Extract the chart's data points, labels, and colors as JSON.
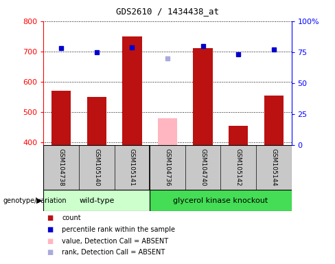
{
  "title": "GDS2610 / 1434438_at",
  "samples": [
    "GSM104738",
    "GSM105140",
    "GSM105141",
    "GSM104736",
    "GSM104740",
    "GSM105142",
    "GSM105144"
  ],
  "count_values": [
    570,
    550,
    750,
    null,
    710,
    455,
    553
  ],
  "count_absent": [
    null,
    null,
    null,
    478,
    null,
    null,
    null
  ],
  "rank_values": [
    78,
    75,
    79,
    null,
    80,
    73,
    77
  ],
  "rank_absent": [
    null,
    null,
    null,
    70,
    null,
    null,
    null
  ],
  "ylim": [
    390,
    800
  ],
  "y2lim": [
    0,
    100
  ],
  "yticks": [
    400,
    500,
    600,
    700,
    800
  ],
  "y2ticks": [
    0,
    25,
    50,
    75,
    100
  ],
  "bar_color": "#BB1111",
  "bar_absent_color": "#FFB6C1",
  "rank_color": "#0000CC",
  "rank_absent_color": "#AAAADD",
  "bar_bottom": 390,
  "wt_color": "#CCFFCC",
  "ko_color": "#44DD55",
  "sample_bg_color": "#C8C8C8",
  "legend_items": [
    {
      "label": "count",
      "color": "#BB1111"
    },
    {
      "label": "percentile rank within the sample",
      "color": "#0000CC"
    },
    {
      "label": "value, Detection Call = ABSENT",
      "color": "#FFB6C1"
    },
    {
      "label": "rank, Detection Call = ABSENT",
      "color": "#AAAADD"
    }
  ]
}
